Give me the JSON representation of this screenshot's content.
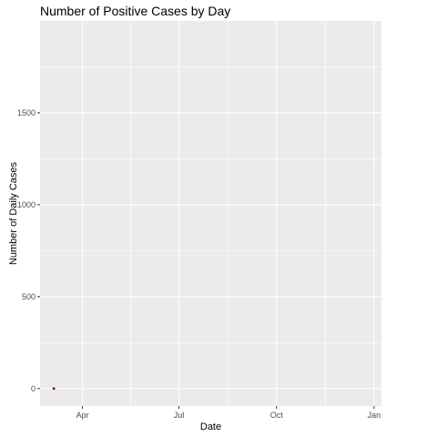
{
  "chart_data": {
    "type": "scatter",
    "title": "Number of Positive Cases by Day",
    "xlabel": "Date",
    "ylabel": "Number of Daily Cases",
    "x_ticks": [
      {
        "date": "2020-04-01",
        "label": "Apr"
      },
      {
        "date": "2020-07-01",
        "label": "Jul"
      },
      {
        "date": "2020-10-01",
        "label": "Oct"
      },
      {
        "date": "2021-01-01",
        "label": "Jan"
      }
    ],
    "y_ticks": [
      0,
      500,
      1000,
      1500
    ],
    "xlim": [
      "2020-02-21",
      "2021-01-08"
    ],
    "ylim": [
      -95,
      2000
    ],
    "grid": true,
    "background": "#ebebeb",
    "grid_color": "#ffffff",
    "series": [
      {
        "color": "#8b0000",
        "points": [
          {
            "x": "2020-03-05",
            "y": 0
          }
        ]
      }
    ]
  }
}
